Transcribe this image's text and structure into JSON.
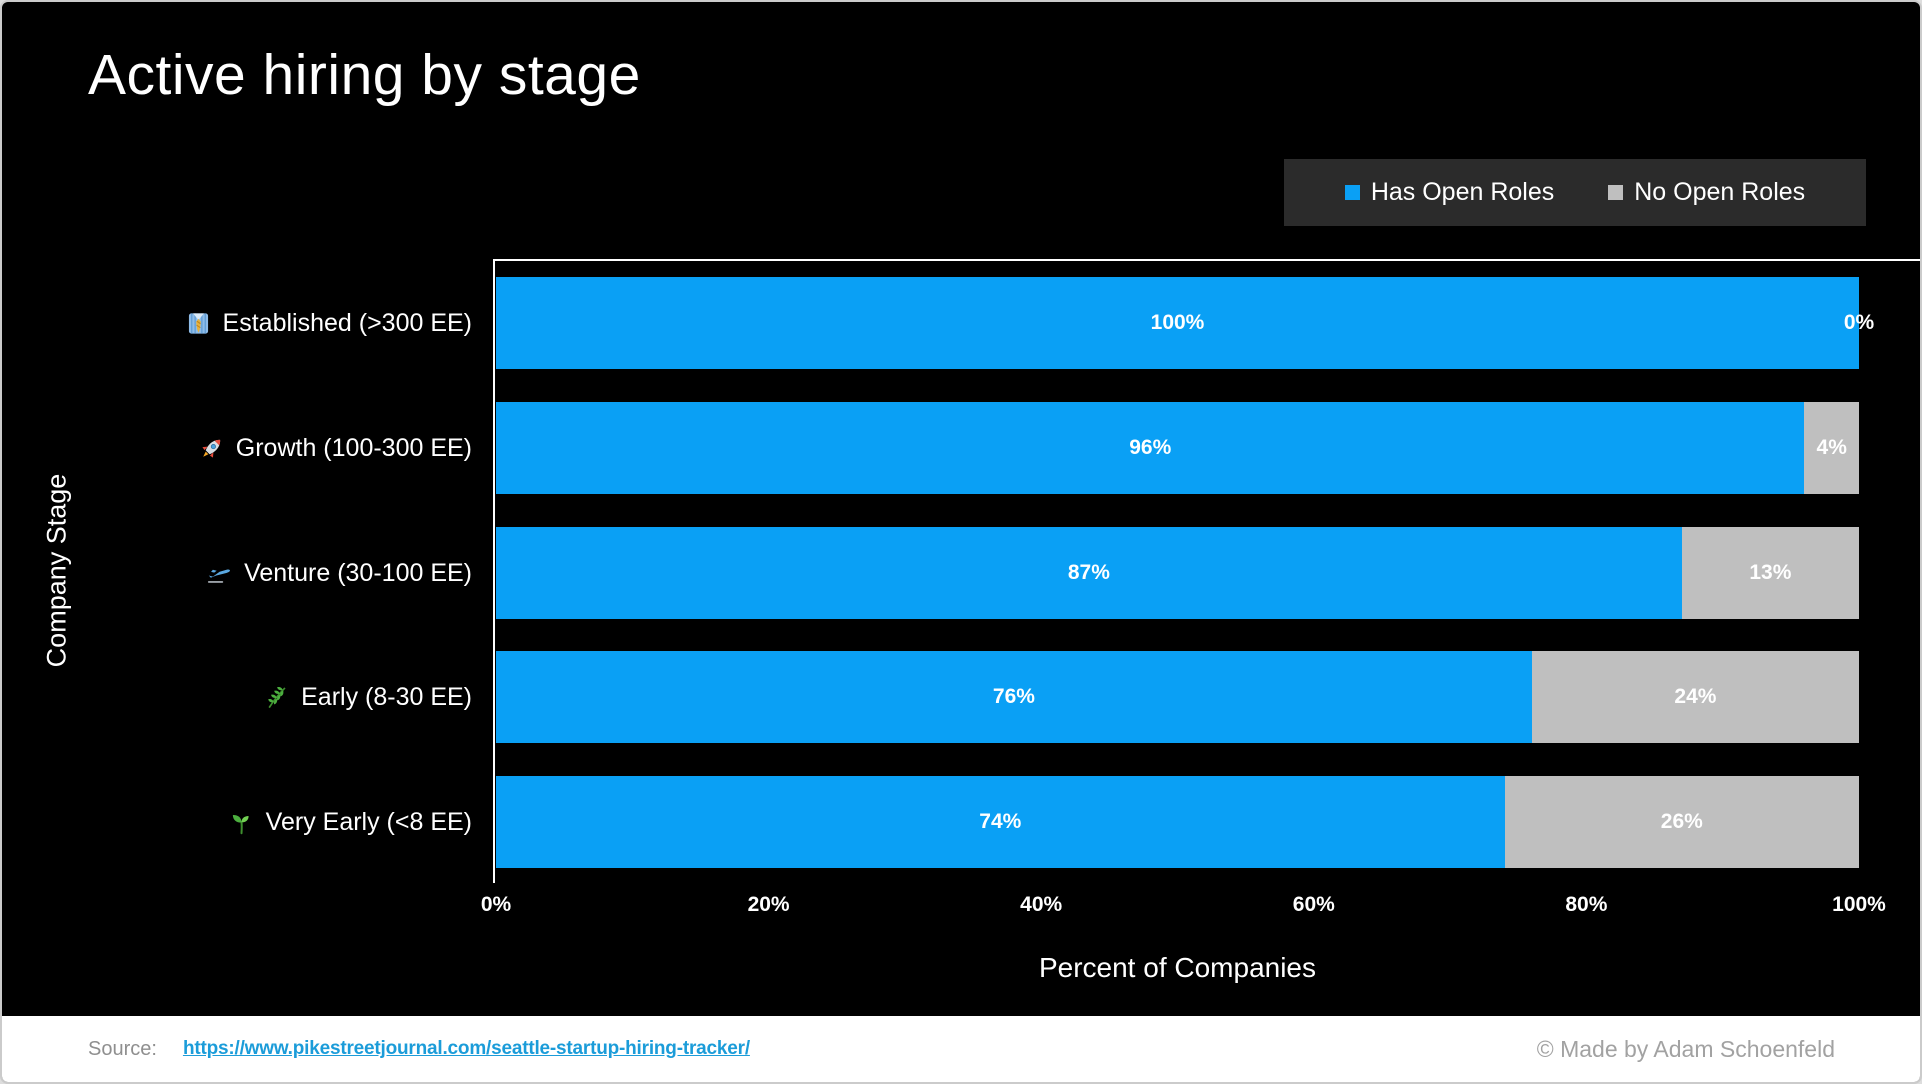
{
  "page": {
    "title": "Active hiring by stage"
  },
  "legend": {
    "items": [
      {
        "label": "Has Open Roles",
        "color": "#0aa0f5",
        "icon": "blue-square-icon"
      },
      {
        "label": "No Open Roles",
        "color": "#bfbfbf",
        "icon": "gray-square-icon"
      }
    ]
  },
  "chart_data": {
    "type": "bar",
    "orientation": "horizontal",
    "stacked": true,
    "title": "Active hiring by stage",
    "xlabel": "Percent of Companies",
    "ylabel": "Company Stage",
    "xlim": [
      0,
      100
    ],
    "x_ticks": [
      "0%",
      "20%",
      "40%",
      "60%",
      "80%",
      "100%"
    ],
    "grid": false,
    "legend_position": "top-right",
    "categories": [
      {
        "icon_name": "necktie-icon",
        "emoji": "👔",
        "label": "Established (>300 EE)"
      },
      {
        "icon_name": "rocket-icon",
        "emoji": "🚀",
        "label": "Growth (100-300 EE)"
      },
      {
        "icon_name": "airplane-departure-icon",
        "emoji": "🛫",
        "label": "Venture (30-100 EE)"
      },
      {
        "icon_name": "herb-icon",
        "emoji": "🌿",
        "label": "Early (8-30 EE)"
      },
      {
        "icon_name": "seedling-icon",
        "emoji": "🌱",
        "label": "Very Early (<8 EE)"
      }
    ],
    "series": [
      {
        "name": "Has Open Roles",
        "color": "#0aa0f5",
        "values": [
          100,
          96,
          87,
          76,
          74
        ],
        "labels": [
          "100%",
          "96%",
          "87%",
          "76%",
          "74%"
        ]
      },
      {
        "name": "No Open Roles",
        "color": "#bfbfbf",
        "values": [
          0,
          4,
          13,
          24,
          26
        ],
        "labels": [
          "0%",
          "4%",
          "13%",
          "24%",
          "26%"
        ]
      }
    ]
  },
  "footer": {
    "source_label": "Source:",
    "source_url": "https://www.pikestreetjournal.com/seattle-startup-hiring-tracker/",
    "credit": "© Made by Adam Schoenfeld"
  }
}
